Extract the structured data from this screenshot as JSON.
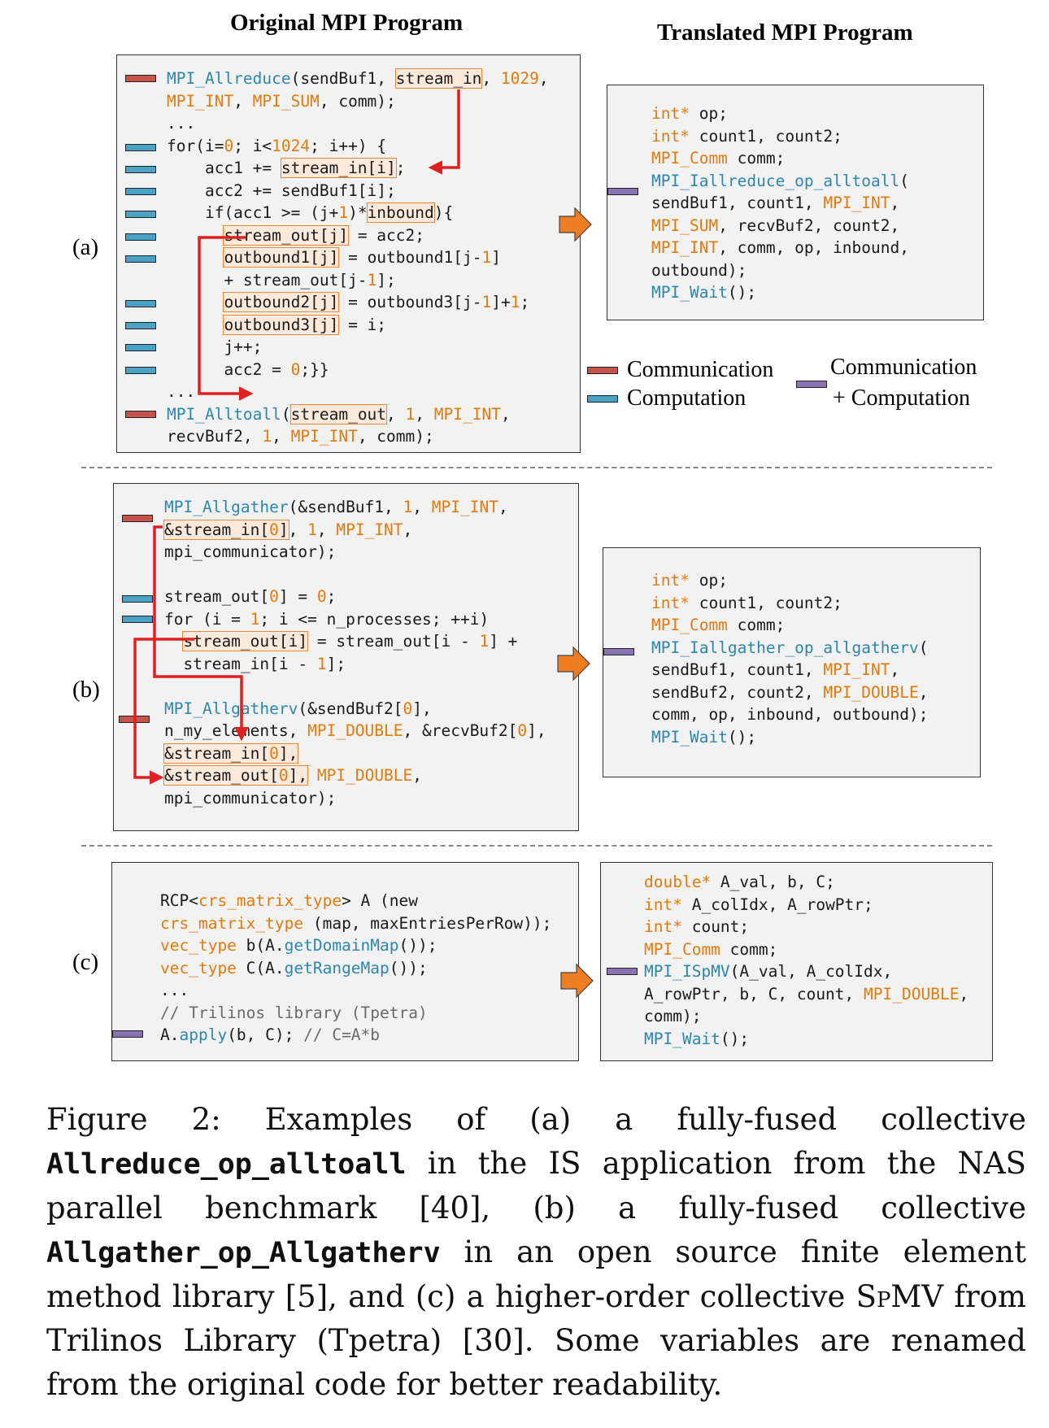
{
  "headers": {
    "original": "Original MPI Program",
    "translated": "Translated MPI Program"
  },
  "labels": {
    "a": "(a)",
    "b": "(b)",
    "c": "(c)"
  },
  "legend": {
    "communication": "Communication",
    "computation": "Computation",
    "comm_comp_line1": "Communication",
    "comm_comp_line2": "+ Computation",
    "colors": {
      "communication": "#c9524b",
      "computation": "#4aa3c7",
      "both": "#8a73b5",
      "highlight": "#e8863a",
      "arrow": "#e02020"
    }
  },
  "panel_a": {
    "original": [
      "MPI_Allreduce(sendBuf1, stream_in, 1029,",
      "MPI_INT, MPI_SUM, comm);",
      "...",
      "for(i=0; i<1024; i++) {",
      "    acc1 += stream_in[i];",
      "    acc2 += sendBuf1[i];",
      "    if(acc1 >= (j+1)*inbound){",
      "      stream_out[j] = acc2;",
      "      outbound1[j] = outbound1[j-1]",
      "      + stream_out[j-1];",
      "      outbound2[j] = outbound3[j-1]+1;",
      "      outbound3[j] = i;",
      "      j++;",
      "      acc2 = 0;}}",
      "...",
      "MPI_Alltoall(stream_out, 1, MPI_INT,",
      "recvBuf2, 1, MPI_INT, comm);"
    ],
    "translated": [
      "int* op;",
      "int* count1, count2;",
      "MPI_Comm comm;",
      "MPI_Iallreduce_op_alltoall(",
      "sendBuf1, count1, MPI_INT,",
      "MPI_SUM, recvBuf2, count2,",
      "MPI_INT, comm, op, inbound,",
      "outbound);",
      "MPI_Wait();"
    ]
  },
  "panel_b": {
    "original": [
      "MPI_Allgather(&sendBuf1, 1, MPI_INT,",
      "&stream_in[0], 1, MPI_INT,",
      "mpi_communicator);",
      "",
      "stream_out[0] = 0;",
      "for (i = 1; i <= n_processes; ++i)",
      "  stream_out[i] = stream_out[i - 1] +",
      "  stream_in[i - 1];",
      "",
      "MPI_Allgatherv(&sendBuf2[0],",
      "n_my_elements, MPI_DOUBLE, &recvBuf2[0],",
      "&stream_in[0],",
      "&stream_out[0], MPI_DOUBLE,",
      "mpi_communicator);"
    ],
    "translated": [
      "int* op;",
      "int* count1, count2;",
      "MPI_Comm comm;",
      "MPI_Iallgather_op_allgatherv(",
      "sendBuf1, count1, MPI_INT,",
      "sendBuf2, count2, MPI_DOUBLE,",
      "comm, op, inbound, outbound);",
      "MPI_Wait();"
    ]
  },
  "panel_c": {
    "original": [
      "RCP<crs_matrix_type> A (new",
      "crs_matrix_type (map, maxEntriesPerRow));",
      "vec_type b(A.getDomainMap());",
      "vec_type C(A.getRangeMap());",
      "...",
      "// Trilinos library (Tpetra)",
      "A.apply(b, C); // C=A*b"
    ],
    "translated": [
      "double* A_val, b, C;",
      "int* A_colIdx, A_rowPtr;",
      "int* count;",
      "MPI_Comm comm;",
      "MPI_ISpMV(A_val, A_colIdx,",
      "A_rowPtr, b, C, count, MPI_DOUBLE,",
      "comm);",
      "MPI_Wait();"
    ]
  },
  "caption": {
    "p1": "Figure 2: Examples of (a) a fully-fused collective ",
    "m1": "Allreduce_op_alltoall",
    "p2": " in the IS application from the NAS parallel benchmark [40], (b) a fully-fused collective ",
    "m2": "Allgather_op_Allgatherv",
    "p3": " in an open source finite element method library [5], and (c) a higher-order collective ",
    "sc": "SpMV",
    "p4": " from Trilinos Library (Tpetra) [30]. Some variables are renamed from the original code for better readability."
  }
}
